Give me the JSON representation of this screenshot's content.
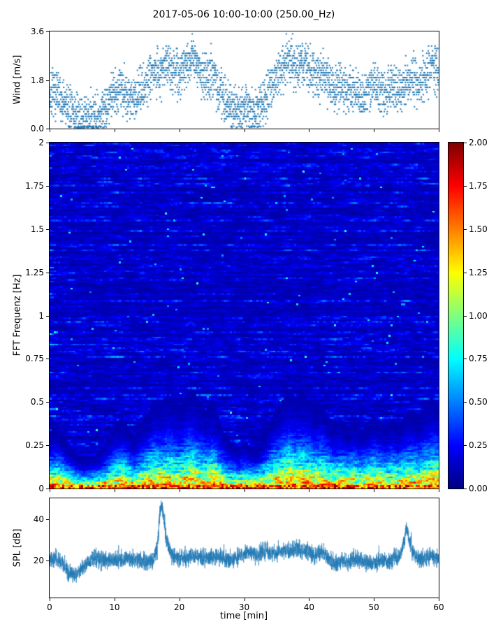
{
  "figure": {
    "title": "2017-05-06 10:00-10:00 (250.00_Hz)",
    "background": "#ffffff"
  },
  "chart_data": [
    {
      "id": "wind",
      "type": "scatter",
      "ylabel": "Wind [m/s]",
      "xlim": [
        0,
        60
      ],
      "ylim": [
        0,
        3.6
      ],
      "yticks": [
        0.0,
        1.8,
        3.6
      ],
      "ytick_labels": [
        "0.0",
        "1.8",
        "3.6"
      ],
      "marker_color": "#1f77b4",
      "marker": "point",
      "n_points": 3000,
      "noise_sd": 0.42,
      "seed": 7,
      "description": "Dense 2-Hz wind speed samples; calm near t=4-8 and t=27-33, gusty clusters up to 3.6 m/s near t=16-25 and t=34-42",
      "mean_profile": {
        "t": [
          0,
          1,
          2,
          3,
          4,
          5,
          6,
          7,
          8,
          9,
          10,
          11,
          12,
          13,
          14,
          15,
          16,
          17,
          18,
          19,
          20,
          21,
          22,
          23,
          24,
          25,
          26,
          27,
          28,
          29,
          30,
          31,
          32,
          33,
          34,
          35,
          36,
          37,
          38,
          39,
          40,
          41,
          42,
          43,
          44,
          45,
          46,
          47,
          48,
          49,
          50,
          51,
          52,
          53,
          54,
          55,
          56,
          57,
          58,
          59,
          60
        ],
        "v": [
          1.2,
          1.3,
          1.0,
          0.7,
          0.4,
          0.3,
          0.35,
          0.4,
          0.6,
          1.0,
          1.4,
          1.6,
          1.3,
          1.0,
          1.4,
          1.8,
          2.2,
          2.0,
          2.4,
          2.2,
          2.0,
          2.4,
          2.6,
          2.2,
          1.9,
          2.1,
          1.6,
          1.1,
          0.8,
          0.6,
          0.9,
          0.7,
          0.6,
          1.0,
          1.5,
          1.9,
          2.2,
          2.6,
          2.3,
          2.5,
          2.2,
          1.9,
          2.1,
          1.7,
          1.4,
          1.6,
          1.3,
          1.5,
          1.2,
          1.4,
          1.7,
          1.5,
          1.3,
          1.6,
          1.4,
          1.7,
          1.9,
          1.6,
          2.0,
          2.3,
          2.1
        ]
      }
    },
    {
      "id": "spectrogram",
      "type": "heatmap",
      "ylabel": "FFT Frequenz [Hz]",
      "xlim": [
        0,
        60
      ],
      "ylim": [
        0,
        2
      ],
      "yticks": [
        0,
        0.25,
        0.5,
        0.75,
        1,
        1.25,
        1.5,
        1.75,
        2
      ],
      "ytick_labels": [
        "0",
        "0.25",
        "0.5",
        "0.75",
        "1",
        "1.25",
        "1.5",
        "1.75",
        "2"
      ],
      "colormap": "jet",
      "value_range": [
        0,
        2
      ],
      "grid": {
        "cols": 186,
        "rows": 198
      },
      "seed": 11,
      "description": "Mostly dark-blue low amplitudes (0-0.3) with horizontal blue streaks above 0.35 Hz; strong energy band below ~0.3 Hz with cyan/green/yellow speckle rising toward red/dark-red (1.2-2.0) at the lowest frequencies; band height follows wind bursts",
      "colorbar": {
        "ticks": [
          0,
          0.25,
          0.5,
          0.75,
          1,
          1.25,
          1.5,
          1.75,
          2
        ],
        "tick_labels": [
          "0.00",
          "0.25",
          "0.50",
          "0.75",
          "1.00",
          "1.25",
          "1.50",
          "1.75",
          "2.00"
        ]
      }
    },
    {
      "id": "spl",
      "type": "line",
      "ylabel": "SPL [dB]",
      "xlabel": "time [min]",
      "xlim": [
        0,
        60
      ],
      "ylim": [
        2,
        50
      ],
      "yticks": [
        20,
        40
      ],
      "ytick_labels": [
        "20",
        "40"
      ],
      "xticks": [
        0,
        10,
        20,
        30,
        40,
        50,
        60
      ],
      "xtick_labels": [
        "0",
        "10",
        "20",
        "30",
        "40",
        "50",
        "60"
      ],
      "line_color": "#1f77b4",
      "noise_sd": 2.0,
      "seed": 3,
      "description": "Noisy SPL around 20 dB, dip to ~13 dB near t=3-5, sharp spike to ~46 dB at t=17, secondary bump to ~36 dB near t=55",
      "baseline_profile": {
        "t": [
          0,
          1,
          2,
          3,
          4,
          5,
          6,
          7,
          8,
          10,
          12,
          14,
          15,
          16,
          16.6,
          17,
          17.3,
          17.7,
          18,
          18.5,
          19,
          20,
          22,
          24,
          26,
          28,
          30,
          31,
          32,
          33,
          34,
          35,
          36,
          37,
          38,
          39,
          40,
          41,
          42,
          43,
          44,
          45,
          46,
          47,
          48,
          49,
          50,
          51,
          52,
          53,
          54,
          54.6,
          55,
          55.4,
          56,
          57,
          58,
          59,
          60
        ],
        "v": [
          20,
          21,
          18,
          14,
          13,
          16,
          19,
          21,
          20,
          20,
          21,
          20,
          19,
          20,
          26,
          42,
          46,
          38,
          30,
          25,
          22,
          21,
          22,
          21,
          22,
          20,
          23,
          24,
          22,
          25,
          24,
          23,
          25,
          24,
          26,
          25,
          24,
          22,
          24,
          21,
          18,
          20,
          19,
          21,
          20,
          19,
          18,
          20,
          19,
          21,
          22,
          28,
          36,
          30,
          24,
          20,
          21,
          22,
          21
        ]
      }
    }
  ]
}
